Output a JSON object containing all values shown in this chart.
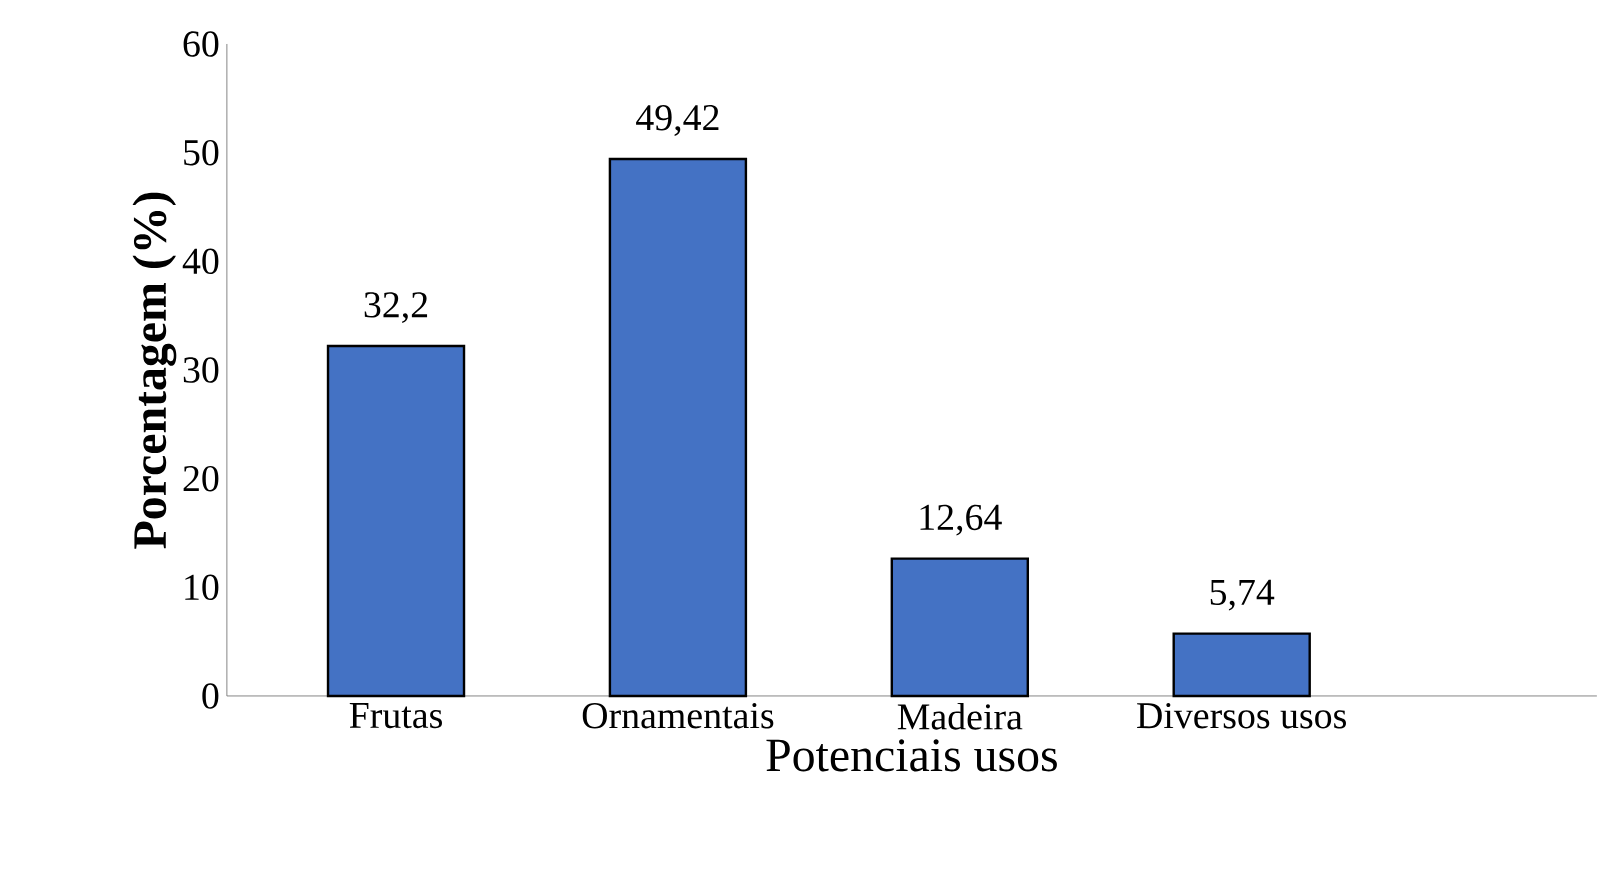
{
  "chart_data": {
    "type": "bar",
    "xlabel": "Potenciais usos",
    "ylabel": "Porcentagem (%)",
    "categories": [
      "Frutas",
      "Ornamentais",
      "Madeira",
      "Diversos usos"
    ],
    "values": [
      32.2,
      49.42,
      12.64,
      5.74
    ],
    "value_labels": [
      "32,2",
      "49,42",
      "12,64",
      "5,74"
    ],
    "color": "#4472c4",
    "ylim": [
      0,
      60
    ],
    "yticks": [
      0,
      10,
      20,
      30,
      40,
      50,
      60
    ],
    "grid": false
  }
}
